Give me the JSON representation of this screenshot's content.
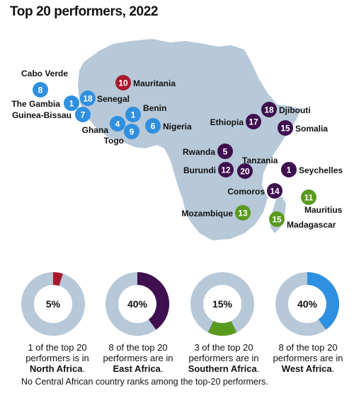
{
  "title": "Top 20 performers, 2022",
  "colors": {
    "north": "#a8192e",
    "east": "#3f0f4f",
    "southern": "#5a9a1f",
    "west": "#2f8fe0",
    "land": "#b7c8d8",
    "donut_track": "#b7c8d8"
  },
  "chart_data": [
    {
      "type": "map",
      "markers": [
        {
          "country": "Cabo Verde",
          "rank": "8",
          "region": "west"
        },
        {
          "country": "The Gambia",
          "rank": "1",
          "region": "west"
        },
        {
          "country": "Senegal",
          "rank": "18",
          "region": "west"
        },
        {
          "country": "Guinea-Bissau",
          "rank": "7",
          "region": "west"
        },
        {
          "country": "Mauritania",
          "rank": "10",
          "region": "north"
        },
        {
          "country": "Ghana",
          "rank": "4",
          "region": "west"
        },
        {
          "country": "Benin",
          "rank": "1",
          "region": "west"
        },
        {
          "country": "Togo",
          "rank": "9",
          "region": "west"
        },
        {
          "country": "Nigeria",
          "rank": "6",
          "region": "west"
        },
        {
          "country": "Djibouti",
          "rank": "18",
          "region": "east"
        },
        {
          "country": "Ethiopia",
          "rank": "17",
          "region": "east"
        },
        {
          "country": "Somalia",
          "rank": "15",
          "region": "east"
        },
        {
          "country": "Rwanda",
          "rank": "5",
          "region": "east"
        },
        {
          "country": "Tanzania",
          "rank": "20",
          "region": "east"
        },
        {
          "country": "Burundi",
          "rank": "12",
          "region": "east"
        },
        {
          "country": "Seychelles",
          "rank": "1",
          "region": "east"
        },
        {
          "country": "Comoros",
          "rank": "14",
          "region": "east"
        },
        {
          "country": "Mauritius",
          "rank": "11",
          "region": "southern"
        },
        {
          "country": "Mozambique",
          "rank": "13",
          "region": "southern"
        },
        {
          "country": "Madagascar",
          "rank": "15",
          "region": "southern"
        }
      ]
    },
    {
      "type": "pie",
      "donuts": [
        {
          "region": "north",
          "value": 5,
          "label": "5%",
          "caption_pre": "1 of the top 20 performers is in",
          "caption_region": "North Africa",
          "caption_post": "."
        },
        {
          "region": "east",
          "value": 40,
          "label": "40%",
          "caption_pre": "8 of the top 20 performers are in",
          "caption_region": "East Africa",
          "caption_post": "."
        },
        {
          "region": "southern",
          "value": 15,
          "label": "15%",
          "caption_pre": "3 of the top 20 performers are in",
          "caption_region": "Southern Africa",
          "caption_post": "."
        },
        {
          "region": "west",
          "value": 40,
          "label": "40%",
          "caption_pre": "8 of the top 20 performers are in",
          "caption_region": "West Africa",
          "caption_post": "."
        }
      ]
    }
  ],
  "footnote": "No Central African country ranks among the top-20 performers."
}
